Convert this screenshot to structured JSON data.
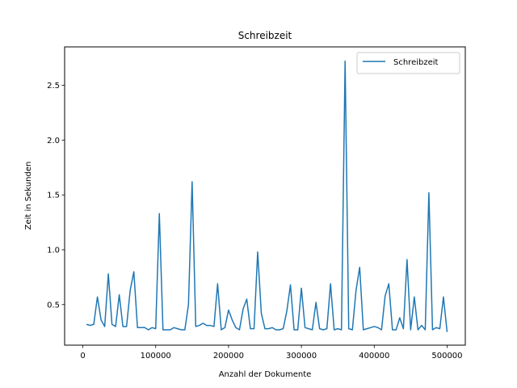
{
  "chart_data": {
    "type": "line",
    "title": "Schreibzeit",
    "xlabel": "Anzahl der Dokumente",
    "ylabel": "Zeit in Sekunden",
    "xlim": [
      -25000,
      525000
    ],
    "ylim": [
      0.13,
      2.85
    ],
    "xticks": [
      0,
      100000,
      200000,
      300000,
      400000,
      500000
    ],
    "xtick_labels": [
      "0",
      "100000",
      "200000",
      "300000",
      "400000",
      "500000"
    ],
    "yticks": [
      0.5,
      1.0,
      1.5,
      2.0,
      2.5
    ],
    "ytick_labels": [
      "0.5",
      "1.0",
      "1.5",
      "2.0",
      "2.5"
    ],
    "grid": false,
    "legend_position": "top-right",
    "series": [
      {
        "name": "Schreibzeit",
        "color": "#1f77b4",
        "x": [
          5000,
          10000,
          15000,
          20000,
          25000,
          30000,
          35000,
          40000,
          45000,
          50000,
          55000,
          60000,
          65000,
          70000,
          75000,
          80000,
          85000,
          90000,
          95000,
          100000,
          105000,
          110000,
          115000,
          120000,
          125000,
          130000,
          135000,
          140000,
          145000,
          150000,
          155000,
          160000,
          165000,
          170000,
          175000,
          180000,
          185000,
          190000,
          195000,
          200000,
          205000,
          210000,
          215000,
          220000,
          225000,
          230000,
          235000,
          240000,
          245000,
          250000,
          255000,
          260000,
          265000,
          270000,
          275000,
          280000,
          285000,
          290000,
          295000,
          300000,
          305000,
          310000,
          315000,
          320000,
          325000,
          330000,
          335000,
          340000,
          345000,
          350000,
          355000,
          360000,
          365000,
          370000,
          375000,
          380000,
          385000,
          390000,
          395000,
          400000,
          405000,
          410000,
          415000,
          420000,
          425000,
          430000,
          435000,
          440000,
          445000,
          450000,
          455000,
          460000,
          465000,
          470000,
          475000,
          480000,
          485000,
          490000,
          495000,
          500000
        ],
        "y": [
          0.32,
          0.31,
          0.32,
          0.57,
          0.36,
          0.3,
          0.78,
          0.32,
          0.3,
          0.59,
          0.3,
          0.3,
          0.63,
          0.8,
          0.29,
          0.29,
          0.29,
          0.27,
          0.29,
          0.28,
          1.33,
          0.27,
          0.27,
          0.27,
          0.29,
          0.28,
          0.27,
          0.27,
          0.5,
          1.62,
          0.3,
          0.31,
          0.33,
          0.31,
          0.31,
          0.3,
          0.69,
          0.27,
          0.29,
          0.45,
          0.36,
          0.29,
          0.27,
          0.46,
          0.55,
          0.28,
          0.28,
          0.98,
          0.42,
          0.28,
          0.28,
          0.29,
          0.27,
          0.27,
          0.28,
          0.44,
          0.68,
          0.27,
          0.27,
          0.65,
          0.29,
          0.28,
          0.27,
          0.52,
          0.28,
          0.27,
          0.28,
          0.69,
          0.27,
          0.28,
          0.27,
          2.72,
          0.28,
          0.27,
          0.63,
          0.84,
          0.27,
          0.28,
          0.29,
          0.3,
          0.29,
          0.27,
          0.58,
          0.69,
          0.27,
          0.27,
          0.38,
          0.28,
          0.91,
          0.27,
          0.57,
          0.27,
          0.31,
          0.27,
          1.52,
          0.27,
          0.29,
          0.28,
          0.57,
          0.25
        ]
      }
    ]
  }
}
